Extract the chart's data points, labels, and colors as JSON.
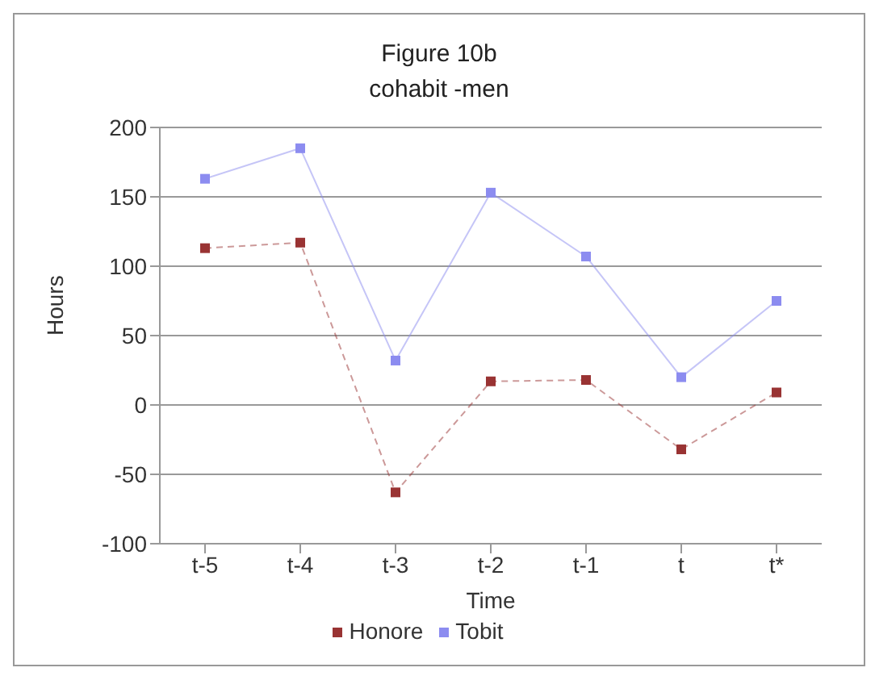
{
  "chart_data": {
    "type": "line",
    "title": "Figure 10b",
    "subtitle": "cohabit -men",
    "xlabel": "Time",
    "ylabel": "Hours",
    "categories": [
      "t-5",
      "t-4",
      "t-3",
      "t-2",
      "t-1",
      "t",
      "t*"
    ],
    "series": [
      {
        "name": "Tobit",
        "color": "#8c8cf0",
        "values": [
          163,
          185,
          32,
          153,
          107,
          20,
          75
        ],
        "line_style": "solid"
      },
      {
        "name": "Honore",
        "color": "#993333",
        "values": [
          113,
          117,
          -63,
          17,
          18,
          -32,
          9
        ],
        "line_style": "dashed"
      }
    ],
    "ylim": [
      -100,
      200
    ],
    "yticks": [
      -100,
      -50,
      0,
      50,
      100,
      150,
      200
    ],
    "grid": "y",
    "legend": "bottom",
    "marker": "square"
  }
}
